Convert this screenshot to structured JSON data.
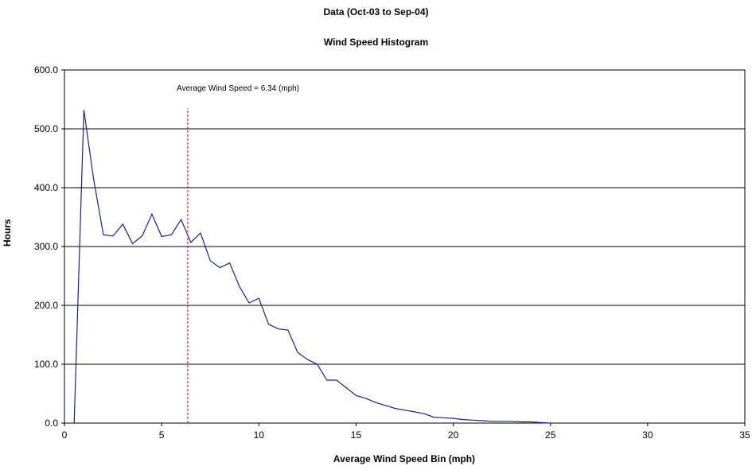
{
  "chart_data": {
    "type": "line",
    "title": "Data (Oct-03 to Sep-04)",
    "subtitle": "Wind Speed Histogram",
    "xlabel": "Average Wind Speed Bin (mph)",
    "ylabel": "Hours",
    "xlim": [
      0,
      35
    ],
    "ylim": [
      0,
      600
    ],
    "xticks": [
      "0",
      "5",
      "10",
      "15",
      "20",
      "25",
      "30",
      "35"
    ],
    "yticks": [
      "0.0",
      "100.0",
      "200.0",
      "300.0",
      "400.0",
      "500.0",
      "600.0"
    ],
    "grid": "horizontal",
    "series": [
      {
        "color": "#1f1f8f",
        "x": [
          0.5,
          1,
          1.5,
          2,
          2.5,
          3,
          3.5,
          4,
          4.5,
          5,
          5.5,
          6,
          6.5,
          7,
          7.5,
          8,
          8.5,
          9,
          9.5,
          10,
          10.5,
          11,
          11.5,
          12,
          12.5,
          13,
          13.5,
          14,
          14.5,
          15,
          15.5,
          16,
          16.5,
          17,
          17.5,
          18,
          18.5,
          19,
          19.5,
          20,
          20.5,
          21,
          21.5,
          22,
          22.5,
          23,
          23.5,
          24,
          24.5,
          25
        ],
        "values": [
          0,
          532,
          415,
          320,
          318,
          338,
          305,
          318,
          355,
          317,
          320,
          346,
          307,
          323,
          276,
          264,
          272,
          232,
          204,
          212,
          168,
          160,
          158,
          120,
          108,
          100,
          73,
          73,
          60,
          47,
          42,
          35,
          30,
          25,
          22,
          19,
          16,
          10,
          9,
          8,
          6,
          5,
          4,
          3,
          3,
          3,
          2,
          2,
          1,
          0
        ]
      }
    ],
    "reference_line": {
      "x": 6.34,
      "y_top": 535,
      "color": "#ff0000",
      "style": "dashed",
      "label": "Average Wind Speed = 6.34 (mph)"
    }
  }
}
